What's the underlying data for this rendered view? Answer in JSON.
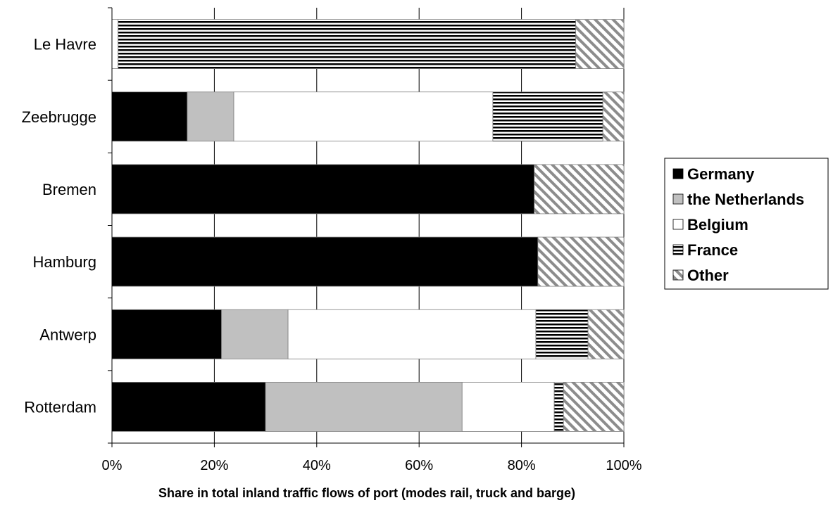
{
  "chart_data": {
    "type": "bar",
    "orientation": "horizontal",
    "stacked": "percent",
    "categories": [
      "Le Havre",
      "Zeebrugge",
      "Bremen",
      "Hamburg",
      "Antwerp",
      "Rotterdam"
    ],
    "series": [
      {
        "name": "Germany",
        "values": [
          0,
          14.7,
          82.5,
          83.2,
          21.4,
          30.0
        ],
        "color": "#000000",
        "pattern": "solid"
      },
      {
        "name": "the Netherlands",
        "values": [
          0,
          9.1,
          0,
          0,
          13.0,
          38.4
        ],
        "color": "#c0c0c0",
        "pattern": "solid"
      },
      {
        "name": "Belgium",
        "values": [
          1.2,
          50.6,
          0,
          0,
          48.4,
          18.0
        ],
        "color": "#ffffff",
        "pattern": "solid"
      },
      {
        "name": "France",
        "values": [
          89.4,
          21.5,
          0,
          0,
          10.2,
          1.8
        ],
        "color": "#000000",
        "pattern": "horizontal-stripes"
      },
      {
        "name": "Other",
        "values": [
          9.4,
          4.1,
          17.5,
          16.8,
          7.0,
          11.8
        ],
        "color": "#808080",
        "pattern": "diagonal-stripes"
      }
    ],
    "xlabel": "Share in total inland traffic flows of port (modes rail, truck and barge)",
    "ylabel": "",
    "xlim": [
      0,
      100
    ],
    "xticks": [
      "0%",
      "20%",
      "40%",
      "60%",
      "80%",
      "100%"
    ],
    "grid": true,
    "legend": "right"
  }
}
